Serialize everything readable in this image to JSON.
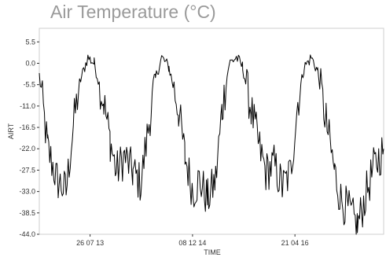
{
  "chart_data": {
    "type": "line",
    "title": "Air Temperature (°C)",
    "xlabel": "TIME",
    "ylabel": "AIRT",
    "ylim": [
      -44.0,
      9.0
    ],
    "xlim": [
      "2012-11-20",
      "2017-06-28"
    ],
    "y_ticks": [
      5.5,
      0.0,
      -5.5,
      -11.0,
      -16.5,
      -22.0,
      -27.5,
      -33.0,
      -38.5,
      -44.0
    ],
    "y_tick_labels": [
      "5.5",
      "0.0",
      "-5.5",
      "-11.0",
      "-16.5",
      "-22.0",
      "-27.5",
      "-33.0",
      "-38.5",
      "-44.0"
    ],
    "x_ticks": [
      "2013-07-26",
      "2014-12-08",
      "2016-04-21"
    ],
    "x_tick_labels": [
      "26 07 13",
      "08 12 14",
      "21 04 16"
    ],
    "grid": false,
    "series": [
      {
        "color": "#000000",
        "x": [
          "2012-11-20",
          "2012-12-31",
          "2013-02-15",
          "2013-03-31",
          "2013-05-05",
          "2013-06-05",
          "2013-07-15",
          "2013-08-15",
          "2013-10-01",
          "2013-11-01",
          "2013-12-01",
          "2014-01-10",
          "2014-02-20",
          "2014-03-31",
          "2014-05-10",
          "2014-06-10",
          "2014-07-10",
          "2014-08-15",
          "2014-10-01",
          "2014-11-01",
          "2014-12-10",
          "2015-01-10",
          "2015-02-20",
          "2015-03-31",
          "2015-05-01",
          "2015-06-05",
          "2015-07-10",
          "2015-08-10",
          "2015-09-20",
          "2015-11-01",
          "2015-12-01",
          "2016-01-10",
          "2016-02-20",
          "2016-03-31",
          "2016-05-05",
          "2016-06-05",
          "2016-07-10",
          "2016-08-10",
          "2016-09-20",
          "2016-11-01",
          "2016-12-01",
          "2017-01-10",
          "2017-02-20",
          "2017-04-01",
          "2017-05-10",
          "2017-06-28"
        ],
        "values": [
          -3,
          -22,
          -30,
          -33,
          -16,
          -5,
          1.5,
          0,
          -10,
          -20,
          -28,
          -24,
          -28,
          -31,
          -15,
          -4,
          1.5,
          -1,
          -12,
          -24,
          -33,
          -30,
          -35,
          -30,
          -12,
          0,
          1.5,
          -1,
          -12,
          -22,
          -28,
          -26,
          -32,
          -28,
          -10,
          -1,
          1.5,
          -2,
          -15,
          -28,
          -35,
          -38,
          -42,
          -34,
          -27,
          -22
        ]
      }
    ]
  }
}
